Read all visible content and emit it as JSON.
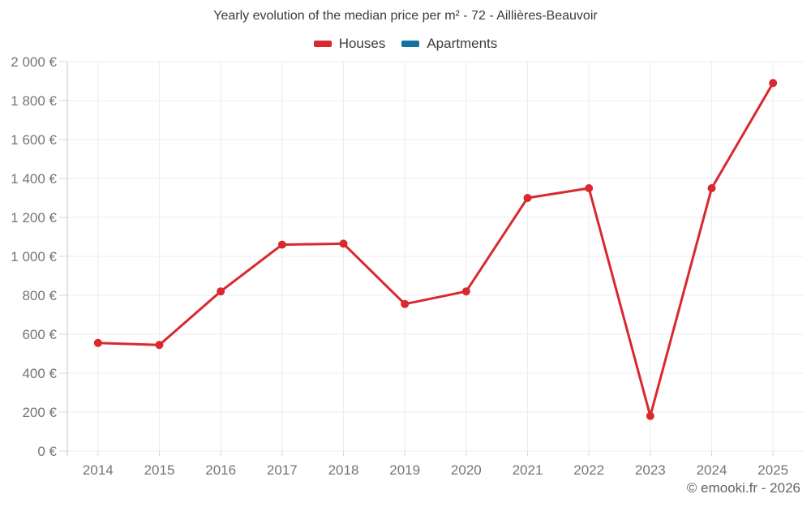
{
  "watermark": "© emooki.fr - 2026",
  "chart_data": {
    "type": "line",
    "title": "Yearly evolution of the median price per m² - 72 - Aillières-Beauvoir",
    "categories": [
      "2014",
      "2015",
      "2016",
      "2017",
      "2018",
      "2019",
      "2020",
      "2021",
      "2022",
      "2023",
      "2024",
      "2025"
    ],
    "series": [
      {
        "name": "Houses",
        "color": "#d9282e",
        "values": [
          555,
          545,
          820,
          1060,
          1065,
          755,
          820,
          1300,
          1350,
          180,
          1350,
          1890
        ]
      },
      {
        "name": "Apartments",
        "color": "#1273a3",
        "values": []
      }
    ],
    "xlabel": "",
    "ylabel": "",
    "ylim": [
      0,
      2000
    ],
    "y_ticks": {
      "values": [
        0,
        200,
        400,
        600,
        800,
        1000,
        1200,
        1400,
        1600,
        1800,
        2000
      ],
      "labels": [
        "0 €",
        "200 €",
        "400 €",
        "600 €",
        "800 €",
        "1 000 €",
        "1 200 €",
        "1 400 €",
        "1 600 €",
        "1 800 €",
        "2 000 €"
      ]
    },
    "grid": true,
    "legend_position": "top"
  },
  "colors": {
    "houses": "#d9282e",
    "apartments": "#1273a3",
    "grid_line": "#ececec",
    "axis_line": "#c6c6c6",
    "tick_mark": "#d8d8d8",
    "tick_label": "#757575",
    "title_text": "#3c3c3c",
    "watermark_text": "#636363",
    "background": "#ffffff"
  }
}
